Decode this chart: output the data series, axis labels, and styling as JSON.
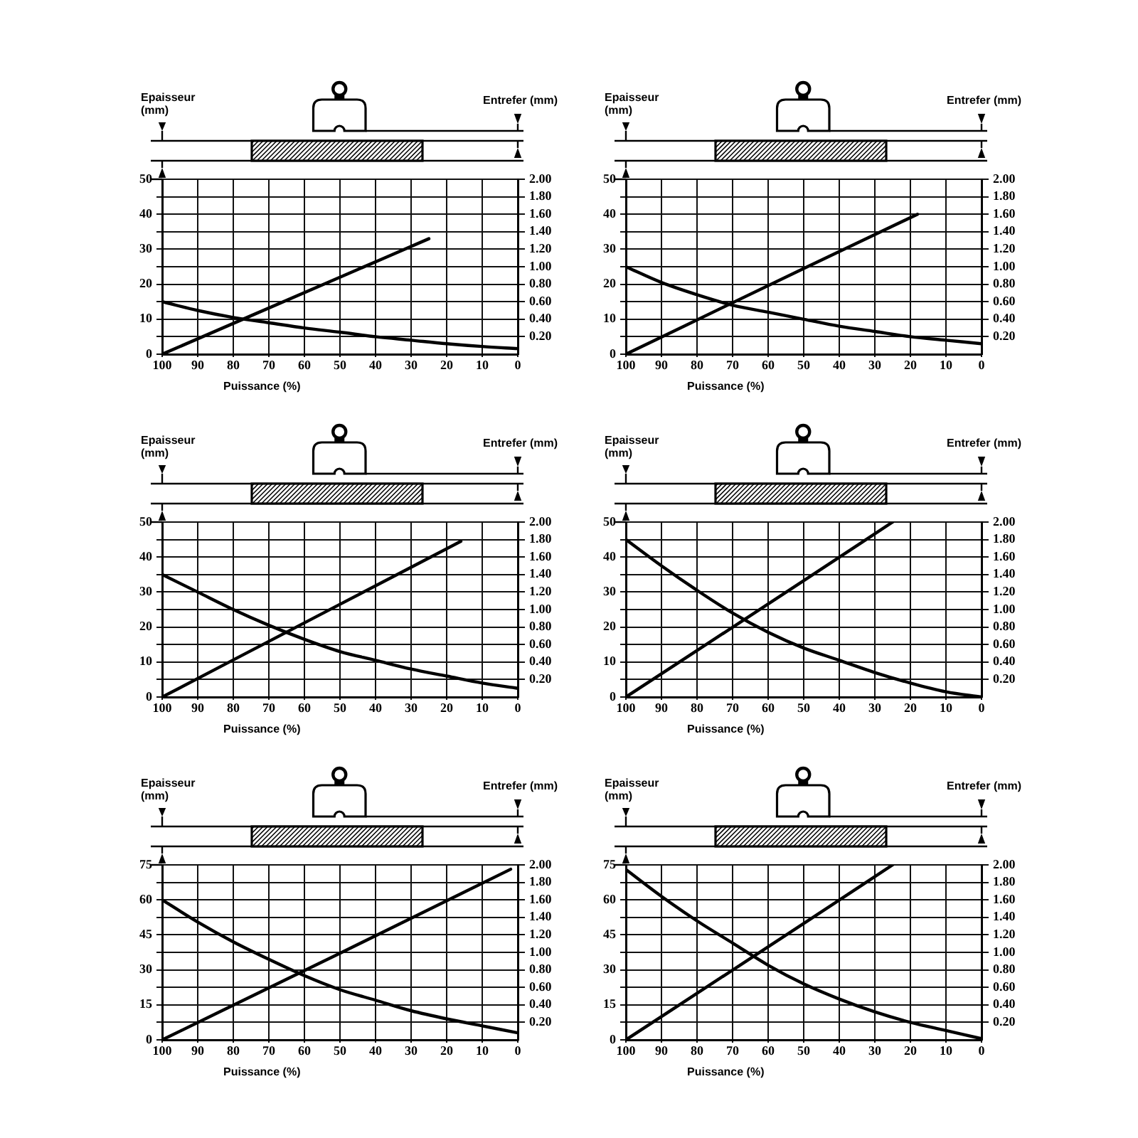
{
  "chart_data": [
    {
      "type": "line",
      "xlabel": "Puissance (%)",
      "ylabel": "Epaisseur (mm)",
      "y2label": "Entrefer (mm)",
      "xlim": [
        100,
        0
      ],
      "xticks": [
        100,
        90,
        80,
        70,
        60,
        50,
        40,
        30,
        20,
        10,
        0
      ],
      "ylim": [
        0,
        50
      ],
      "yticks": [
        0,
        {
          "value": 5,
          "label": null
        },
        10,
        {
          "value": 15,
          "label": null
        },
        20,
        {
          "value": 25,
          "label": null
        },
        30,
        {
          "value": 35,
          "label": null
        },
        40,
        {
          "value": 45,
          "label": null
        },
        50
      ],
      "y2lim": [
        0,
        2
      ],
      "y2ticks": [
        {
          "value": 0.2,
          "label": "0.20"
        },
        {
          "value": 0.4,
          "label": "0.40"
        },
        {
          "value": 0.6,
          "label": "0.60"
        },
        {
          "value": 0.8,
          "label": "0.80"
        },
        {
          "value": 1,
          "label": "1.00"
        },
        {
          "value": 1.2,
          "label": "1.20"
        },
        {
          "value": 1.4,
          "label": "1.40"
        },
        {
          "value": 1.6,
          "label": "1.60"
        },
        {
          "value": 1.8,
          "label": "1.80"
        },
        {
          "value": 2,
          "label": "2.00"
        }
      ],
      "grid": true,
      "series": [
        {
          "color": "#000000",
          "x": [
            100,
            90,
            80,
            70,
            60,
            50,
            40,
            30,
            20,
            10,
            0
          ],
          "values": [
            15,
            12.5,
            10.5,
            9,
            7.5,
            6.3,
            5,
            4,
            3,
            2.2,
            1.6
          ]
        },
        {
          "color": "#000000",
          "axis": "y2",
          "x": [
            100,
            50,
            25
          ],
          "values": [
            0,
            0.88,
            1.32
          ]
        }
      ]
    },
    {
      "type": "line",
      "xlabel": "Puissance (%)",
      "ylabel": "Epaisseur (mm)",
      "y2label": "Entrefer (mm)",
      "xlim": [
        100,
        0
      ],
      "xticks": [
        100,
        90,
        80,
        70,
        60,
        50,
        40,
        30,
        20,
        10,
        0
      ],
      "ylim": [
        0,
        50
      ],
      "yticks": [
        0,
        {
          "value": 5,
          "label": null
        },
        10,
        {
          "value": 15,
          "label": null
        },
        20,
        {
          "value": 25,
          "label": null
        },
        30,
        {
          "value": 35,
          "label": null
        },
        40,
        {
          "value": 45,
          "label": null
        },
        50
      ],
      "y2lim": [
        0,
        2
      ],
      "y2ticks": [
        {
          "value": 0.2,
          "label": "0.20"
        },
        {
          "value": 0.4,
          "label": "0.40"
        },
        {
          "value": 0.6,
          "label": "0.60"
        },
        {
          "value": 0.8,
          "label": "0.80"
        },
        {
          "value": 1,
          "label": "1.00"
        },
        {
          "value": 1.2,
          "label": "1.20"
        },
        {
          "value": 1.4,
          "label": "1.40"
        },
        {
          "value": 1.6,
          "label": "1.60"
        },
        {
          "value": 1.8,
          "label": "1.80"
        },
        {
          "value": 2,
          "label": "2.00"
        }
      ],
      "grid": true,
      "series": [
        {
          "color": "#000000",
          "x": [
            100,
            90,
            80,
            70,
            60,
            50,
            40,
            30,
            20,
            10,
            0
          ],
          "values": [
            25,
            20.5,
            17,
            14,
            12,
            10,
            8,
            6.5,
            5,
            4,
            3
          ]
        },
        {
          "color": "#000000",
          "axis": "y2",
          "x": [
            100,
            50,
            18
          ],
          "values": [
            0,
            0.98,
            1.6
          ]
        }
      ]
    },
    {
      "type": "line",
      "xlabel": "Puissance (%)",
      "ylabel": "Epaisseur (mm)",
      "y2label": "Entrefer (mm)",
      "xlim": [
        100,
        0
      ],
      "xticks": [
        100,
        90,
        80,
        70,
        60,
        50,
        40,
        30,
        20,
        10,
        0
      ],
      "ylim": [
        0,
        50
      ],
      "yticks": [
        0,
        {
          "value": 5,
          "label": null
        },
        10,
        {
          "value": 15,
          "label": null
        },
        20,
        {
          "value": 25,
          "label": null
        },
        30,
        {
          "value": 35,
          "label": null
        },
        40,
        {
          "value": 45,
          "label": null
        },
        50
      ],
      "y2lim": [
        0,
        2
      ],
      "y2ticks": [
        {
          "value": 0.2,
          "label": "0.20"
        },
        {
          "value": 0.4,
          "label": "0.40"
        },
        {
          "value": 0.6,
          "label": "0.60"
        },
        {
          "value": 0.8,
          "label": "0.80"
        },
        {
          "value": 1,
          "label": "1.00"
        },
        {
          "value": 1.2,
          "label": "1.20"
        },
        {
          "value": 1.4,
          "label": "1.40"
        },
        {
          "value": 1.6,
          "label": "1.60"
        },
        {
          "value": 1.8,
          "label": "1.80"
        },
        {
          "value": 2,
          "label": "2.00"
        }
      ],
      "grid": true,
      "series": [
        {
          "color": "#000000",
          "x": [
            100,
            90,
            80,
            70,
            60,
            50,
            40,
            30,
            20,
            10,
            0
          ],
          "values": [
            35,
            30,
            25,
            20.5,
            16.5,
            13,
            10.5,
            8,
            6,
            4,
            2.5
          ]
        },
        {
          "color": "#000000",
          "axis": "y2",
          "x": [
            100,
            50,
            16
          ],
          "values": [
            0,
            1.06,
            1.78
          ]
        }
      ]
    },
    {
      "type": "line",
      "xlabel": "Puissance (%)",
      "ylabel": "Epaisseur (mm)",
      "y2label": "Entrefer (mm)",
      "xlim": [
        100,
        0
      ],
      "xticks": [
        100,
        90,
        80,
        70,
        60,
        50,
        40,
        30,
        20,
        10,
        0
      ],
      "ylim": [
        0,
        50
      ],
      "yticks": [
        0,
        {
          "value": 5,
          "label": null
        },
        10,
        {
          "value": 15,
          "label": null
        },
        20,
        {
          "value": 25,
          "label": null
        },
        30,
        {
          "value": 35,
          "label": null
        },
        40,
        {
          "value": 45,
          "label": null
        },
        50
      ],
      "y2lim": [
        0,
        2
      ],
      "y2ticks": [
        {
          "value": 0.2,
          "label": "0.20"
        },
        {
          "value": 0.4,
          "label": "0.40"
        },
        {
          "value": 0.6,
          "label": "0.60"
        },
        {
          "value": 0.8,
          "label": "0.80"
        },
        {
          "value": 1,
          "label": "1.00"
        },
        {
          "value": 1.2,
          "label": "1.20"
        },
        {
          "value": 1.4,
          "label": "1.40"
        },
        {
          "value": 1.6,
          "label": "1.60"
        },
        {
          "value": 1.8,
          "label": "1.80"
        },
        {
          "value": 2,
          "label": "2.00"
        }
      ],
      "grid": true,
      "series": [
        {
          "color": "#000000",
          "x": [
            100,
            90,
            80,
            70,
            60,
            50,
            40,
            30,
            20,
            10,
            0
          ],
          "values": [
            45,
            37.5,
            30.5,
            24,
            18.5,
            14,
            10.5,
            7,
            4,
            1.5,
            0
          ]
        },
        {
          "color": "#000000",
          "axis": "y2",
          "x": [
            100,
            50,
            25
          ],
          "values": [
            0,
            1.33,
            2
          ]
        }
      ]
    },
    {
      "type": "line",
      "xlabel": "Puissance (%)",
      "ylabel": "Epaisseur (mm)",
      "y2label": "Entrefer (mm)",
      "xlim": [
        100,
        0
      ],
      "xticks": [
        100,
        90,
        80,
        70,
        60,
        50,
        40,
        30,
        20,
        10,
        0
      ],
      "ylim": [
        0,
        75
      ],
      "yticks": [
        0,
        {
          "value": 7.5,
          "label": null
        },
        15,
        {
          "value": 22.5,
          "label": null
        },
        30,
        {
          "value": 37.5,
          "label": null
        },
        45,
        {
          "value": 52.5,
          "label": null
        },
        60,
        {
          "value": 67.5,
          "label": null
        },
        75
      ],
      "y2lim": [
        0,
        2
      ],
      "y2ticks": [
        {
          "value": 0.2,
          "label": "0.20"
        },
        {
          "value": 0.4,
          "label": "0.40"
        },
        {
          "value": 0.6,
          "label": "0.60"
        },
        {
          "value": 0.8,
          "label": "0.80"
        },
        {
          "value": 1,
          "label": "1.00"
        },
        {
          "value": 1.2,
          "label": "1.20"
        },
        {
          "value": 1.4,
          "label": "1.40"
        },
        {
          "value": 1.6,
          "label": "1.60"
        },
        {
          "value": 1.8,
          "label": "1.80"
        },
        {
          "value": 2,
          "label": "2.00"
        }
      ],
      "grid": true,
      "series": [
        {
          "color": "#000000",
          "x": [
            100,
            90,
            80,
            70,
            60,
            50,
            40,
            30,
            20,
            10,
            0
          ],
          "values": [
            60,
            50.5,
            42,
            34.5,
            27.5,
            21.5,
            17,
            12.5,
            9,
            6,
            3
          ]
        },
        {
          "color": "#000000",
          "axis": "y2",
          "x": [
            100,
            50,
            2
          ],
          "values": [
            0,
            0.99,
            1.95
          ]
        }
      ]
    },
    {
      "type": "line",
      "xlabel": "Puissance (%)",
      "ylabel": "Epaisseur (mm)",
      "y2label": "Entrefer (mm)",
      "xlim": [
        100,
        0
      ],
      "xticks": [
        100,
        90,
        80,
        70,
        60,
        50,
        40,
        30,
        20,
        10,
        0
      ],
      "ylim": [
        0,
        75
      ],
      "yticks": [
        0,
        {
          "value": 7.5,
          "label": null
        },
        15,
        {
          "value": 22.5,
          "label": null
        },
        30,
        {
          "value": 37.5,
          "label": null
        },
        45,
        {
          "value": 52.5,
          "label": null
        },
        60,
        {
          "value": 67.5,
          "label": null
        },
        75
      ],
      "y2lim": [
        0,
        2
      ],
      "y2ticks": [
        {
          "value": 0.2,
          "label": "0.20"
        },
        {
          "value": 0.4,
          "label": "0.40"
        },
        {
          "value": 0.6,
          "label": "0.60"
        },
        {
          "value": 0.8,
          "label": "0.80"
        },
        {
          "value": 1,
          "label": "1.00"
        },
        {
          "value": 1.2,
          "label": "1.20"
        },
        {
          "value": 1.4,
          "label": "1.40"
        },
        {
          "value": 1.6,
          "label": "1.60"
        },
        {
          "value": 1.8,
          "label": "1.80"
        },
        {
          "value": 2,
          "label": "2.00"
        }
      ],
      "grid": true,
      "series": [
        {
          "color": "#000000",
          "x": [
            100,
            90,
            80,
            70,
            60,
            50,
            40,
            30,
            20,
            10,
            0
          ],
          "values": [
            73,
            61.5,
            51,
            41.5,
            32,
            24,
            17.5,
            12,
            7.5,
            4,
            0.5
          ]
        },
        {
          "color": "#000000",
          "axis": "y2",
          "x": [
            100,
            50,
            25
          ],
          "values": [
            0,
            1.33,
            2
          ]
        }
      ]
    }
  ]
}
